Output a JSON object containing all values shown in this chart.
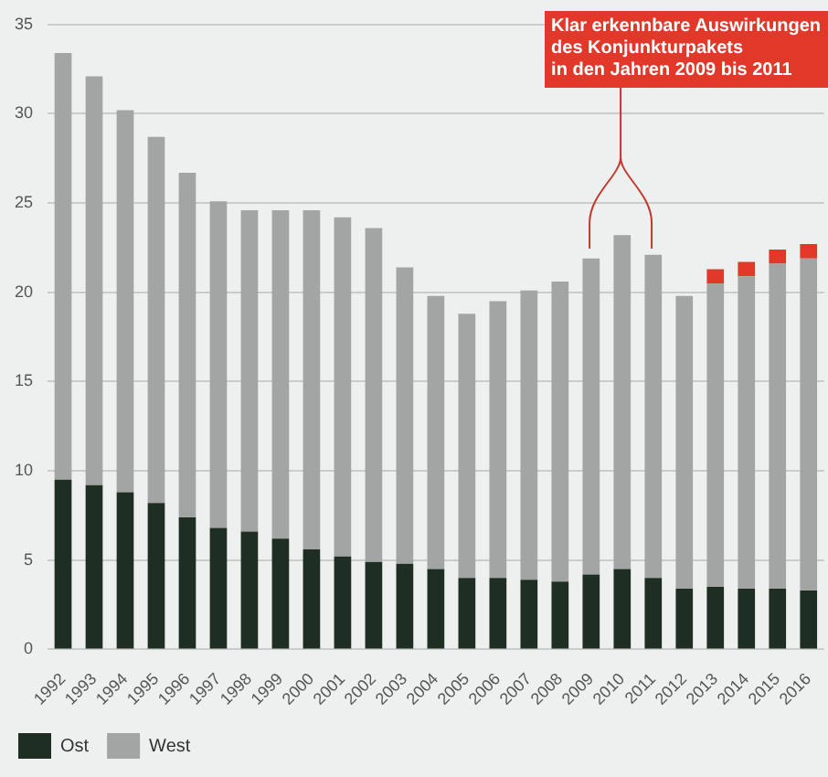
{
  "chart_data": {
    "type": "bar",
    "stacked": true,
    "categories": [
      "1992",
      "1993",
      "1994",
      "1995",
      "1996",
      "1997",
      "1998",
      "1999",
      "2000",
      "2001",
      "2002",
      "2003",
      "2004",
      "2005",
      "2006",
      "2007",
      "2008",
      "2009",
      "2010",
      "2011",
      "2012",
      "2013",
      "2014",
      "2015",
      "2016"
    ],
    "series": [
      {
        "name": "Ost",
        "color": "#1f2e22",
        "values": [
          9.5,
          9.2,
          8.8,
          8.2,
          7.4,
          6.8,
          6.6,
          6.2,
          5.6,
          5.2,
          4.9,
          4.8,
          4.5,
          4.0,
          4.0,
          3.9,
          3.8,
          4.2,
          4.5,
          4.0,
          3.4,
          3.5,
          3.4,
          3.4,
          3.3
        ]
      },
      {
        "name": "West",
        "color": "#a2a5a3",
        "values": [
          23.9,
          22.9,
          21.4,
          20.5,
          19.3,
          18.3,
          18.0,
          18.4,
          19.0,
          19.0,
          18.7,
          16.6,
          15.3,
          14.8,
          15.5,
          16.2,
          16.8,
          17.7,
          18.7,
          18.1,
          16.4,
          17.0,
          17.5,
          18.2,
          18.6
        ]
      },
      {
        "color": "#e2382a",
        "values": [
          null,
          null,
          null,
          null,
          null,
          null,
          null,
          null,
          null,
          null,
          null,
          null,
          null,
          null,
          null,
          null,
          null,
          null,
          null,
          null,
          null,
          0.8,
          0.8,
          0.8,
          0.8
        ]
      }
    ],
    "ylim": [
      0,
      35
    ],
    "yticks": [
      0,
      5,
      10,
      15,
      20,
      25,
      30,
      35
    ],
    "grid": "y",
    "legend": "bottom left",
    "annotations": [
      "Klar erkennbare Auswirkungen\ndes Konjunkturpakets\nin den Jahren 2009 bis 2011"
    ]
  }
}
